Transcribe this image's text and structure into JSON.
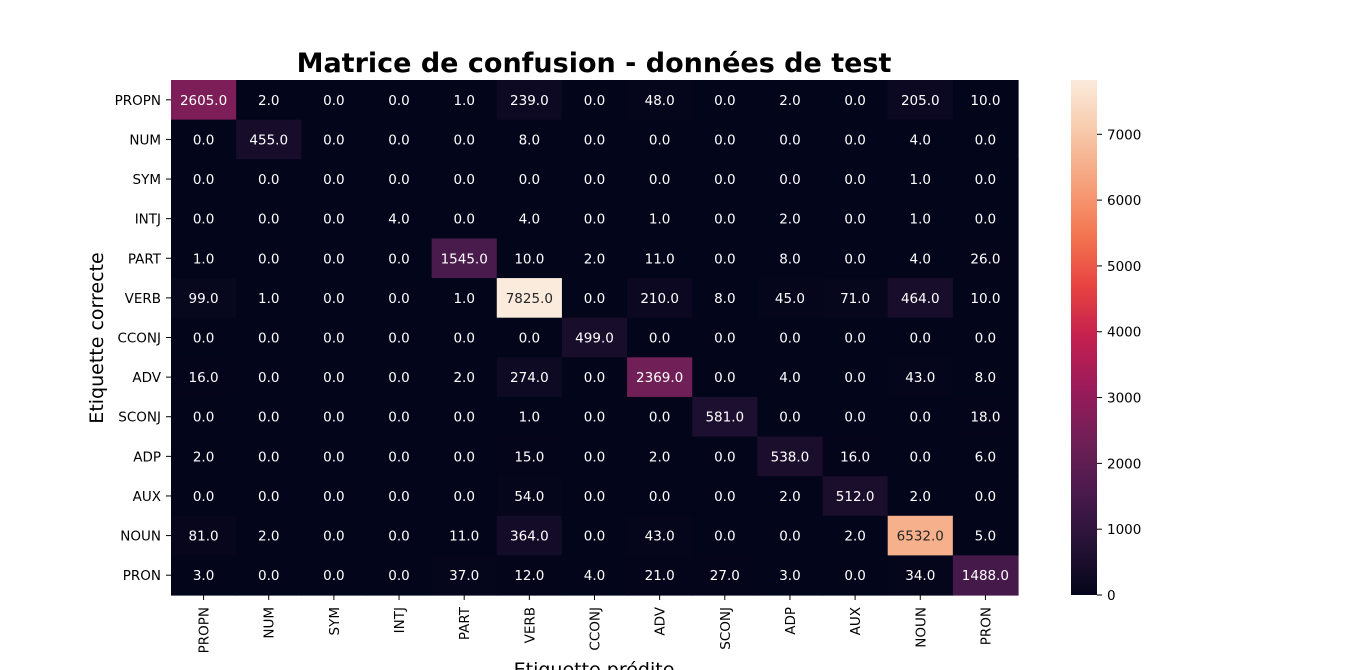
{
  "chart_data": {
    "type": "heatmap",
    "title": "Matrice de confusion - données de test",
    "xlabel": "Etiquette prédite",
    "ylabel": "Etiquette correcte",
    "x_categories": [
      "PROPN",
      "NUM",
      "SYM",
      "INTJ",
      "PART",
      "VERB",
      "CCONJ",
      "ADV",
      "SCONJ",
      "ADP",
      "AUX",
      "NOUN",
      "PRON"
    ],
    "y_categories": [
      "PROPN",
      "NUM",
      "SYM",
      "INTJ",
      "PART",
      "VERB",
      "CCONJ",
      "ADV",
      "SCONJ",
      "ADP",
      "AUX",
      "NOUN",
      "PRON"
    ],
    "values": [
      [
        2605,
        2,
        0,
        0,
        1,
        239,
        0,
        48,
        0,
        2,
        0,
        205,
        10
      ],
      [
        0,
        455,
        0,
        0,
        0,
        8,
        0,
        0,
        0,
        0,
        0,
        4,
        0
      ],
      [
        0,
        0,
        0,
        0,
        0,
        0,
        0,
        0,
        0,
        0,
        0,
        1,
        0
      ],
      [
        0,
        0,
        0,
        4,
        0,
        4,
        0,
        1,
        0,
        2,
        0,
        1,
        0
      ],
      [
        1,
        0,
        0,
        0,
        1545,
        10,
        2,
        11,
        0,
        8,
        0,
        4,
        26
      ],
      [
        99,
        1,
        0,
        0,
        1,
        7825,
        0,
        210,
        8,
        45,
        71,
        464,
        10
      ],
      [
        0,
        0,
        0,
        0,
        0,
        0,
        499,
        0,
        0,
        0,
        0,
        0,
        0
      ],
      [
        16,
        0,
        0,
        0,
        2,
        274,
        0,
        2369,
        0,
        4,
        0,
        43,
        8
      ],
      [
        0,
        0,
        0,
        0,
        0,
        1,
        0,
        0,
        581,
        0,
        0,
        0,
        18
      ],
      [
        2,
        0,
        0,
        0,
        0,
        15,
        0,
        2,
        0,
        538,
        16,
        0,
        6
      ],
      [
        0,
        0,
        0,
        0,
        0,
        54,
        0,
        0,
        0,
        2,
        512,
        2,
        0
      ],
      [
        81,
        2,
        0,
        0,
        11,
        364,
        0,
        43,
        0,
        0,
        2,
        6532,
        5
      ],
      [
        3,
        0,
        0,
        0,
        37,
        12,
        4,
        21,
        27,
        3,
        0,
        34,
        1488
      ]
    ],
    "value_format": "1 decimal",
    "colormap": "rocket",
    "colorbar": {
      "range": [
        0,
        7825
      ],
      "ticks": [
        0,
        1000,
        2000,
        3000,
        4000,
        5000,
        6000,
        7000
      ]
    }
  }
}
